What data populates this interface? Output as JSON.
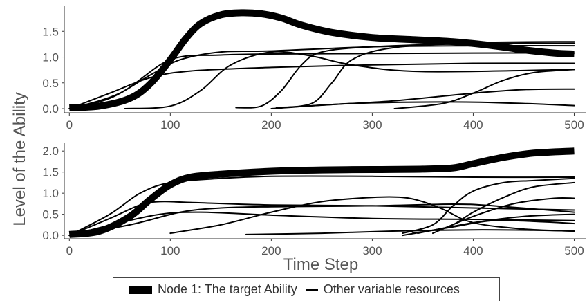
{
  "chart_data": {
    "type": "line",
    "ylabel": "Level of the Ability",
    "xlabel": "Time Step",
    "legend": {
      "position": "bottom",
      "entries": [
        {
          "label": "Node 1: The target Ability",
          "style": "thick"
        },
        {
          "label": "Other variable resources",
          "style": "thin"
        }
      ]
    },
    "panels": [
      {
        "xlim": [
          -5,
          512
        ],
        "ylim": [
          -0.08,
          2.0
        ],
        "xticks": [
          0,
          100,
          200,
          300,
          400,
          500
        ],
        "yticks": [
          0.0,
          0.5,
          1.0,
          1.5
        ],
        "ytick_labels": [
          "0.0",
          "0.5",
          "1.0",
          "1.5"
        ],
        "grid": false,
        "target": {
          "x": [
            0,
            30,
            60,
            80,
            100,
            115,
            130,
            150,
            170,
            190,
            210,
            230,
            260,
            300,
            340,
            380,
            420,
            450,
            480,
            500
          ],
          "y": [
            0.02,
            0.05,
            0.2,
            0.48,
            0.95,
            1.35,
            1.65,
            1.82,
            1.86,
            1.84,
            1.76,
            1.62,
            1.48,
            1.38,
            1.34,
            1.3,
            1.22,
            1.14,
            1.08,
            1.06
          ]
        },
        "others": [
          {
            "x": [
              0,
              40,
              80,
              110,
              150,
              200,
              300,
              400,
              500
            ],
            "y": [
              0.0,
              0.2,
              0.65,
              0.95,
              1.1,
              1.12,
              1.2,
              1.22,
              1.22
            ]
          },
          {
            "x": [
              0,
              40,
              80,
              120,
              200,
              300,
              400,
              500
            ],
            "y": [
              0.0,
              0.3,
              0.6,
              0.73,
              0.8,
              0.85,
              0.88,
              0.88
            ]
          },
          {
            "x": [
              0,
              50,
              100,
              150,
              200,
              300,
              400,
              500
            ],
            "y": [
              0.0,
              0.3,
              0.95,
              1.04,
              1.06,
              1.07,
              1.08,
              1.08
            ]
          },
          {
            "x": [
              55,
              100,
              130,
              160,
              200,
              240,
              280,
              350,
              500
            ],
            "y": [
              0.0,
              0.05,
              0.35,
              0.85,
              1.1,
              1.02,
              0.85,
              0.72,
              0.76
            ]
          },
          {
            "x": [
              165,
              190,
              210,
              230,
              250,
              300,
              400,
              500
            ],
            "y": [
              0.02,
              0.05,
              0.35,
              0.85,
              1.1,
              1.2,
              1.26,
              1.27
            ]
          },
          {
            "x": [
              205,
              240,
              260,
              280,
              320,
              400,
              500
            ],
            "y": [
              0.02,
              0.1,
              0.5,
              0.95,
              1.18,
              1.28,
              1.3
            ]
          },
          {
            "x": [
              210,
              260,
              320,
              400,
              450,
              500
            ],
            "y": [
              0.02,
              0.08,
              0.15,
              0.3,
              0.37,
              0.38
            ]
          },
          {
            "x": [
              200,
              280,
              380,
              450,
              500
            ],
            "y": [
              0.0,
              0.1,
              0.13,
              0.1,
              0.06
            ]
          },
          {
            "x": [
              322,
              370,
              400,
              430,
              460,
              500
            ],
            "y": [
              0.0,
              0.1,
              0.3,
              0.55,
              0.7,
              0.76
            ]
          }
        ]
      },
      {
        "xlim": [
          -5,
          512
        ],
        "ylim": [
          -0.08,
          2.2
        ],
        "xticks": [
          0,
          100,
          200,
          300,
          400,
          500
        ],
        "yticks": [
          0.0,
          0.5,
          1.0,
          1.5,
          2.0
        ],
        "ytick_labels": [
          "0.0",
          "0.5",
          "1.0",
          "1.5",
          "2.0"
        ],
        "xtick_labels": [
          "0",
          "100",
          "200",
          "300",
          "400",
          "500"
        ],
        "grid": false,
        "target": {
          "x": [
            0,
            30,
            60,
            80,
            100,
            120,
            150,
            200,
            250,
            300,
            350,
            380,
            400,
            430,
            460,
            500
          ],
          "y": [
            0.02,
            0.1,
            0.45,
            0.85,
            1.2,
            1.38,
            1.45,
            1.52,
            1.55,
            1.56,
            1.57,
            1.6,
            1.7,
            1.85,
            1.95,
            2.0
          ]
        },
        "others": [
          {
            "x": [
              0,
              40,
              70,
              100,
              150,
              200,
              300,
              400,
              500
            ],
            "y": [
              0.0,
              0.5,
              1.0,
              1.25,
              1.35,
              1.4,
              1.4,
              1.38,
              1.38
            ]
          },
          {
            "x": [
              0,
              40,
              70,
              90,
              120,
              200,
              300,
              400,
              500
            ],
            "y": [
              0.0,
              0.4,
              0.72,
              0.8,
              0.78,
              0.72,
              0.7,
              0.65,
              0.6
            ]
          },
          {
            "x": [
              0,
              50,
              90,
              130,
              200,
              300,
              400,
              500
            ],
            "y": [
              0.0,
              0.3,
              0.5,
              0.55,
              0.48,
              0.4,
              0.38,
              0.35
            ]
          },
          {
            "x": [
              0,
              60,
              110,
              150,
              200,
              300,
              380,
              420,
              500
            ],
            "y": [
              0.0,
              0.25,
              0.55,
              0.65,
              0.68,
              0.7,
              0.74,
              0.7,
              0.55
            ]
          },
          {
            "x": [
              100,
              150,
              200,
              250,
              300,
              330,
              350,
              370,
              400,
              450,
              500
            ],
            "y": [
              0.05,
              0.25,
              0.55,
              0.8,
              0.9,
              0.9,
              0.8,
              0.62,
              0.3,
              0.15,
              0.1
            ]
          },
          {
            "x": [
              175,
              250,
              320,
              400,
              460,
              500
            ],
            "y": [
              0.02,
              0.05,
              0.1,
              0.13,
              0.12,
              0.1
            ]
          },
          {
            "x": [
              330,
              360,
              380,
              400,
              430,
              460,
              500
            ],
            "y": [
              0.05,
              0.25,
              0.7,
              1.05,
              1.25,
              1.3,
              1.35
            ]
          },
          {
            "x": [
              340,
              375,
              400,
              430,
              460,
              500
            ],
            "y": [
              0.05,
              0.2,
              0.55,
              0.9,
              1.15,
              1.25
            ]
          },
          {
            "x": [
              345,
              400,
              450,
              500
            ],
            "y": [
              0.05,
              0.3,
              0.45,
              0.5
            ]
          },
          {
            "x": [
              360,
              400,
              440,
              480,
              500
            ],
            "y": [
              0.05,
              0.45,
              0.75,
              0.88,
              0.88
            ]
          },
          {
            "x": [
              330,
              380,
              420,
              470,
              500
            ],
            "y": [
              0.0,
              0.2,
              0.35,
              0.32,
              0.28
            ]
          }
        ]
      }
    ]
  }
}
